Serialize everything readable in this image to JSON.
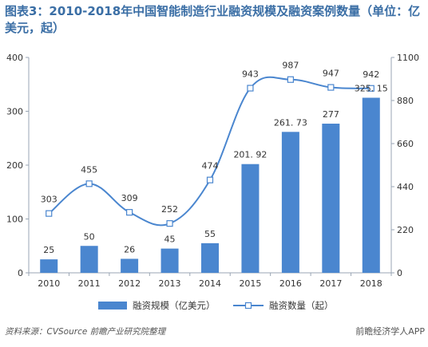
{
  "title": "图表3：2010-2018年中国智能制造行业融资规模及融资案例数量（单位：亿美元，起）",
  "source": "资料来源：CVSource 前瞻产业研究院整理",
  "brand": "前瞻经济学人APP",
  "colors": {
    "bar": "#4a86cf",
    "line": "#4a86cf",
    "axis": "#9aa6b4",
    "text": "#333333",
    "title": "#3a6ea5"
  },
  "chart_data": {
    "type": "bar+line",
    "categories": [
      "2010",
      "2011",
      "2012",
      "2013",
      "2014",
      "2015",
      "2016",
      "2017",
      "2018"
    ],
    "series": [
      {
        "name": "融资规模（亿美元）",
        "type": "bar",
        "axis": "left",
        "values": [
          25,
          50,
          26,
          45,
          55,
          201.92,
          261.73,
          277,
          325.15
        ],
        "labels": [
          "25",
          "50",
          "26",
          "45",
          "55",
          "201. 92",
          "261. 73",
          "277",
          "325. 15"
        ]
      },
      {
        "name": "融资数量（起）",
        "type": "line",
        "axis": "right",
        "values": [
          303,
          455,
          309,
          252,
          474,
          943,
          987,
          947,
          942
        ],
        "labels": [
          "303",
          "455",
          "309",
          "252",
          "474",
          "943",
          "987",
          "947",
          "942"
        ]
      }
    ],
    "y_left": {
      "min": 0,
      "max": 400,
      "ticks": [
        0,
        100,
        200,
        300,
        400
      ]
    },
    "y_right": {
      "min": 0,
      "max": 1100,
      "ticks": [
        0,
        220,
        440,
        660,
        880,
        1100
      ]
    },
    "legend_position": "bottom",
    "grid": false
  }
}
